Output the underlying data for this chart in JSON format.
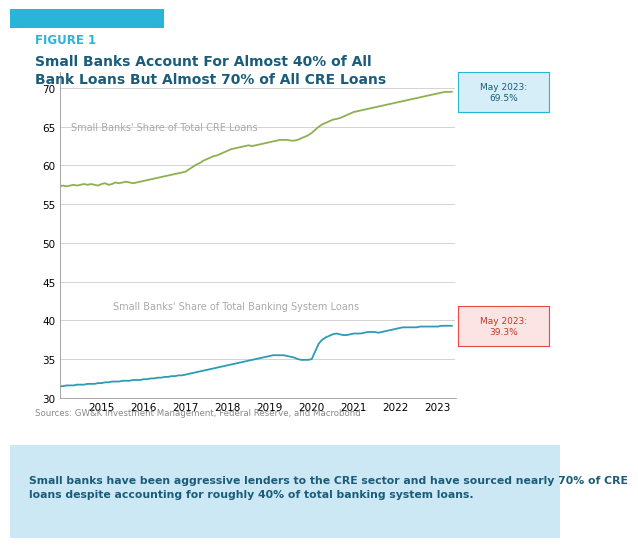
{
  "title_label": "FIGURE 1",
  "title": "Small Banks Account For Almost 40% of All\nBank Loans But Almost 70% of All CRE Loans",
  "title_color": "#1a5c7a",
  "figure1_label_color": "#29b5d8",
  "bg_color": "#ffffff",
  "plot_bg_color": "#ffffff",
  "footer_bg_color": "#cce8f4",
  "ylim": [
    30,
    72
  ],
  "yticks": [
    30,
    35,
    40,
    45,
    50,
    55,
    60,
    65,
    70
  ],
  "source_text": "Sources: GW&K Investment Management, Federal Reserve, and Macrobond",
  "footer_text": "Small banks have been aggressive lenders to the CRE sector and have sourced nearly 70% of CRE\nloans despite accounting for roughly 40% of total banking system loans.",
  "cre_label": "Small Banks' Share of Total CRE Loans",
  "banking_label": "Small Banks' Share of Total Banking System Loans",
  "cre_color": "#8db050",
  "banking_color": "#2e9bb5",
  "cre_end_label": "May 2023:\n69.5%",
  "banking_end_label": "May 2023:\n39.3%",
  "cre_end_box_facecolor": "#d6eef8",
  "cre_end_box_edgecolor": "#29b5d8",
  "banking_end_box_facecolor": "#fce4e4",
  "banking_end_box_edgecolor": "#e74c3c",
  "xtick_years": [
    2015,
    2016,
    2017,
    2018,
    2019,
    2020,
    2021,
    2022,
    2023
  ],
  "cre_x": [
    2014.0,
    2014.083,
    2014.167,
    2014.25,
    2014.333,
    2014.417,
    2014.5,
    2014.583,
    2014.667,
    2014.75,
    2014.833,
    2014.917,
    2015.0,
    2015.083,
    2015.167,
    2015.25,
    2015.333,
    2015.417,
    2015.5,
    2015.583,
    2015.667,
    2015.75,
    2015.833,
    2015.917,
    2016.0,
    2016.083,
    2016.167,
    2016.25,
    2016.333,
    2016.417,
    2016.5,
    2016.583,
    2016.667,
    2016.75,
    2016.833,
    2016.917,
    2017.0,
    2017.083,
    2017.167,
    2017.25,
    2017.333,
    2017.417,
    2017.5,
    2017.583,
    2017.667,
    2017.75,
    2017.833,
    2017.917,
    2018.0,
    2018.083,
    2018.167,
    2018.25,
    2018.333,
    2018.417,
    2018.5,
    2018.583,
    2018.667,
    2018.75,
    2018.833,
    2018.917,
    2019.0,
    2019.083,
    2019.167,
    2019.25,
    2019.333,
    2019.417,
    2019.5,
    2019.583,
    2019.667,
    2019.75,
    2019.833,
    2019.917,
    2020.0,
    2020.083,
    2020.167,
    2020.25,
    2020.333,
    2020.417,
    2020.5,
    2020.583,
    2020.667,
    2020.75,
    2020.833,
    2020.917,
    2021.0,
    2021.083,
    2021.167,
    2021.25,
    2021.333,
    2021.417,
    2021.5,
    2021.583,
    2021.667,
    2021.75,
    2021.833,
    2021.917,
    2022.0,
    2022.083,
    2022.167,
    2022.25,
    2022.333,
    2022.417,
    2022.5,
    2022.583,
    2022.667,
    2022.75,
    2022.833,
    2022.917,
    2023.0,
    2023.083,
    2023.167,
    2023.25,
    2023.333
  ],
  "cre_y": [
    57.3,
    57.4,
    57.3,
    57.4,
    57.5,
    57.4,
    57.5,
    57.6,
    57.5,
    57.6,
    57.5,
    57.4,
    57.6,
    57.7,
    57.5,
    57.6,
    57.8,
    57.7,
    57.8,
    57.9,
    57.8,
    57.7,
    57.8,
    57.9,
    58.0,
    58.1,
    58.2,
    58.3,
    58.4,
    58.5,
    58.6,
    58.7,
    58.8,
    58.9,
    59.0,
    59.1,
    59.2,
    59.5,
    59.8,
    60.1,
    60.3,
    60.6,
    60.8,
    61.0,
    61.2,
    61.3,
    61.5,
    61.7,
    61.9,
    62.1,
    62.2,
    62.3,
    62.4,
    62.5,
    62.6,
    62.5,
    62.6,
    62.7,
    62.8,
    62.9,
    63.0,
    63.1,
    63.2,
    63.3,
    63.3,
    63.3,
    63.2,
    63.2,
    63.3,
    63.5,
    63.7,
    63.9,
    64.2,
    64.6,
    65.0,
    65.3,
    65.5,
    65.7,
    65.9,
    66.0,
    66.1,
    66.3,
    66.5,
    66.7,
    66.9,
    67.0,
    67.1,
    67.2,
    67.3,
    67.4,
    67.5,
    67.6,
    67.7,
    67.8,
    67.9,
    68.0,
    68.1,
    68.2,
    68.3,
    68.4,
    68.5,
    68.6,
    68.7,
    68.8,
    68.9,
    69.0,
    69.1,
    69.2,
    69.3,
    69.4,
    69.5,
    69.5,
    69.5
  ],
  "banking_x": [
    2014.0,
    2014.083,
    2014.167,
    2014.25,
    2014.333,
    2014.417,
    2014.5,
    2014.583,
    2014.667,
    2014.75,
    2014.833,
    2014.917,
    2015.0,
    2015.083,
    2015.167,
    2015.25,
    2015.333,
    2015.417,
    2015.5,
    2015.583,
    2015.667,
    2015.75,
    2015.833,
    2015.917,
    2016.0,
    2016.083,
    2016.167,
    2016.25,
    2016.333,
    2016.417,
    2016.5,
    2016.583,
    2016.667,
    2016.75,
    2016.833,
    2016.917,
    2017.0,
    2017.083,
    2017.167,
    2017.25,
    2017.333,
    2017.417,
    2017.5,
    2017.583,
    2017.667,
    2017.75,
    2017.833,
    2017.917,
    2018.0,
    2018.083,
    2018.167,
    2018.25,
    2018.333,
    2018.417,
    2018.5,
    2018.583,
    2018.667,
    2018.75,
    2018.833,
    2018.917,
    2019.0,
    2019.083,
    2019.167,
    2019.25,
    2019.333,
    2019.417,
    2019.5,
    2019.583,
    2019.667,
    2019.75,
    2019.833,
    2019.917,
    2020.0,
    2020.083,
    2020.167,
    2020.25,
    2020.333,
    2020.417,
    2020.5,
    2020.583,
    2020.667,
    2020.75,
    2020.833,
    2020.917,
    2021.0,
    2021.083,
    2021.167,
    2021.25,
    2021.333,
    2021.417,
    2021.5,
    2021.583,
    2021.667,
    2021.75,
    2021.833,
    2021.917,
    2022.0,
    2022.083,
    2022.167,
    2022.25,
    2022.333,
    2022.417,
    2022.5,
    2022.583,
    2022.667,
    2022.75,
    2022.833,
    2022.917,
    2023.0,
    2023.083,
    2023.167,
    2023.25,
    2023.333
  ],
  "banking_y": [
    31.5,
    31.5,
    31.6,
    31.6,
    31.6,
    31.7,
    31.7,
    31.7,
    31.8,
    31.8,
    31.8,
    31.9,
    31.9,
    32.0,
    32.0,
    32.1,
    32.1,
    32.1,
    32.2,
    32.2,
    32.2,
    32.3,
    32.3,
    32.3,
    32.4,
    32.4,
    32.5,
    32.5,
    32.6,
    32.6,
    32.7,
    32.7,
    32.8,
    32.8,
    32.9,
    32.9,
    33.0,
    33.1,
    33.2,
    33.3,
    33.4,
    33.5,
    33.6,
    33.7,
    33.8,
    33.9,
    34.0,
    34.1,
    34.2,
    34.3,
    34.4,
    34.5,
    34.6,
    34.7,
    34.8,
    34.9,
    35.0,
    35.1,
    35.2,
    35.3,
    35.4,
    35.5,
    35.5,
    35.5,
    35.5,
    35.4,
    35.3,
    35.2,
    35.0,
    34.9,
    34.9,
    34.9,
    35.0,
    36.0,
    37.0,
    37.5,
    37.8,
    38.0,
    38.2,
    38.3,
    38.2,
    38.1,
    38.1,
    38.2,
    38.3,
    38.3,
    38.3,
    38.4,
    38.5,
    38.5,
    38.5,
    38.4,
    38.5,
    38.6,
    38.7,
    38.8,
    38.9,
    39.0,
    39.1,
    39.1,
    39.1,
    39.1,
    39.1,
    39.2,
    39.2,
    39.2,
    39.2,
    39.2,
    39.2,
    39.3,
    39.3,
    39.3,
    39.3
  ]
}
